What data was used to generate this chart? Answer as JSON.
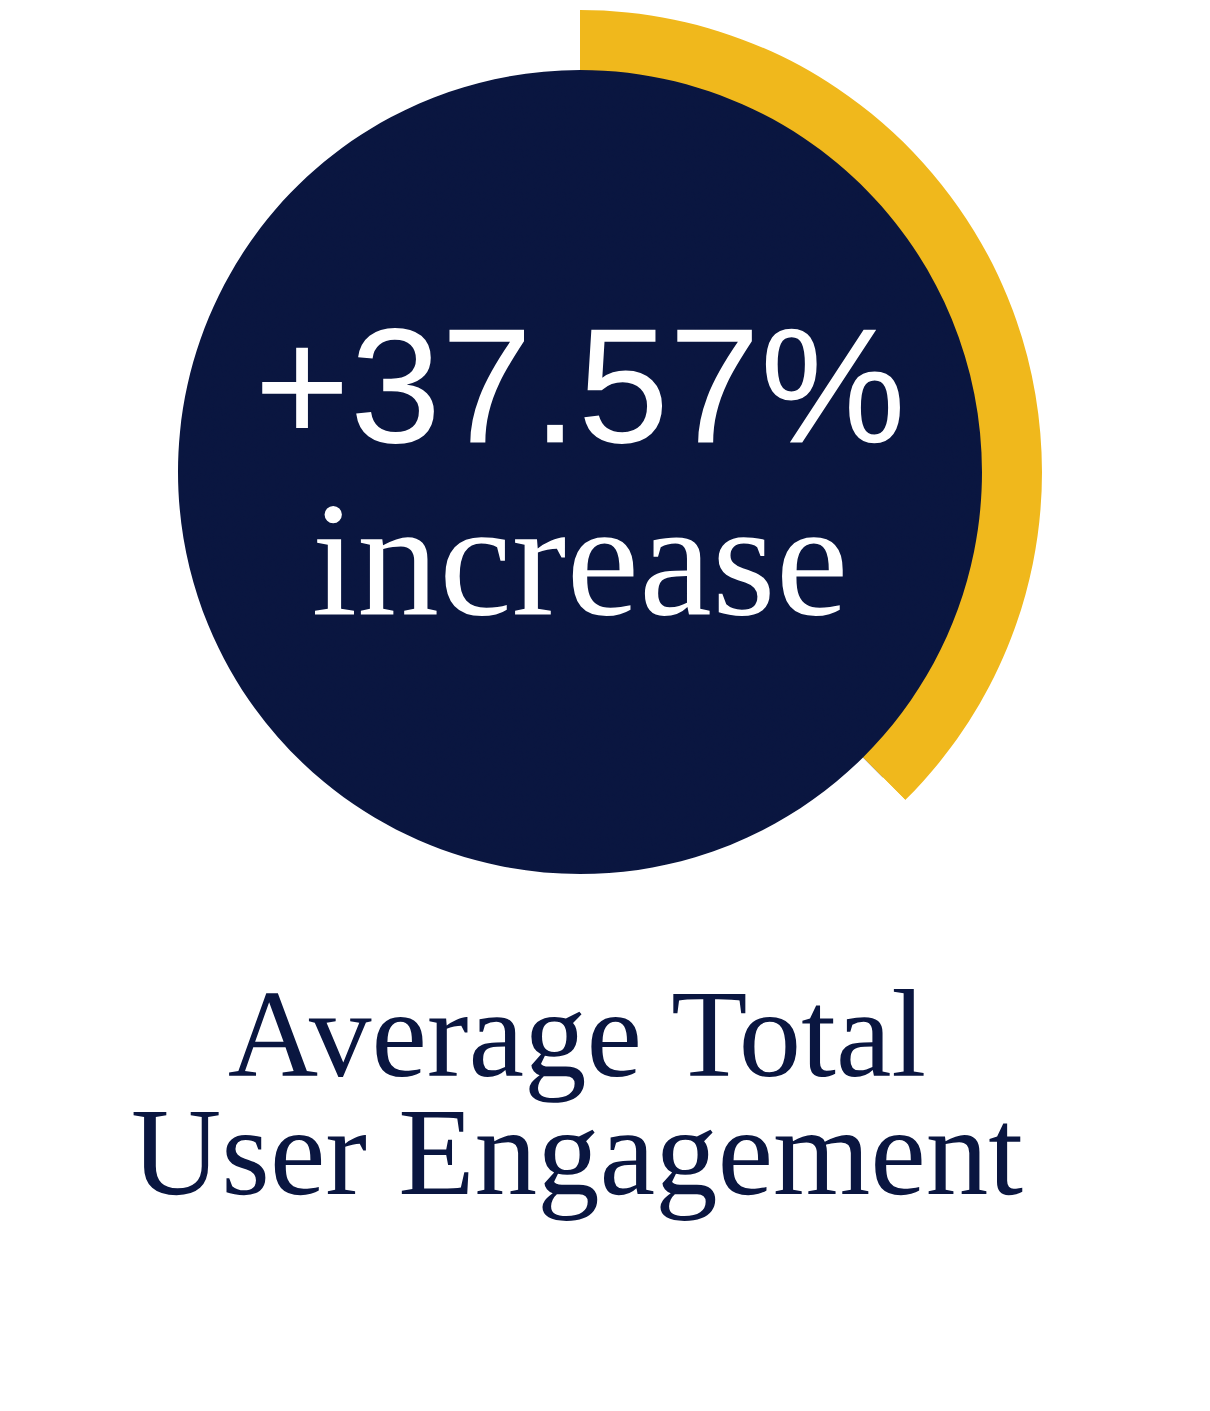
{
  "chart_data": {
    "type": "donut",
    "title": "Average Total\nUser Engagement",
    "categories": [
      null,
      null
    ],
    "values": [
      37.57,
      62.43
    ],
    "colors": [
      "#f0b81c",
      "#ffffff"
    ],
    "annotations": [
      "+37.57%",
      "increase"
    ]
  }
}
